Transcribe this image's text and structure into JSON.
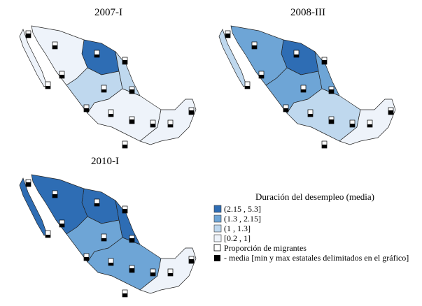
{
  "maps": [
    {
      "title": "2007-I"
    },
    {
      "title": "2008-III"
    },
    {
      "title": "2010-I"
    }
  ],
  "legend": {
    "title": "Duración del desempleo (media)",
    "items": [
      {
        "label": "(2.15 , 5.3]",
        "color": "#2e6db4"
      },
      {
        "label": "(1.3 , 2.15]",
        "color": "#6ea5d6"
      },
      {
        "label": "(1 , 1.3]",
        "color": "#bfd8ee"
      },
      {
        "label": "[0.2 , 1]",
        "color": "#eef3fa"
      }
    ]
  },
  "migrants": {
    "title": "Proporción de migrantes",
    "note": "- media [min y max estatales delimitados en el gráfico]"
  }
}
